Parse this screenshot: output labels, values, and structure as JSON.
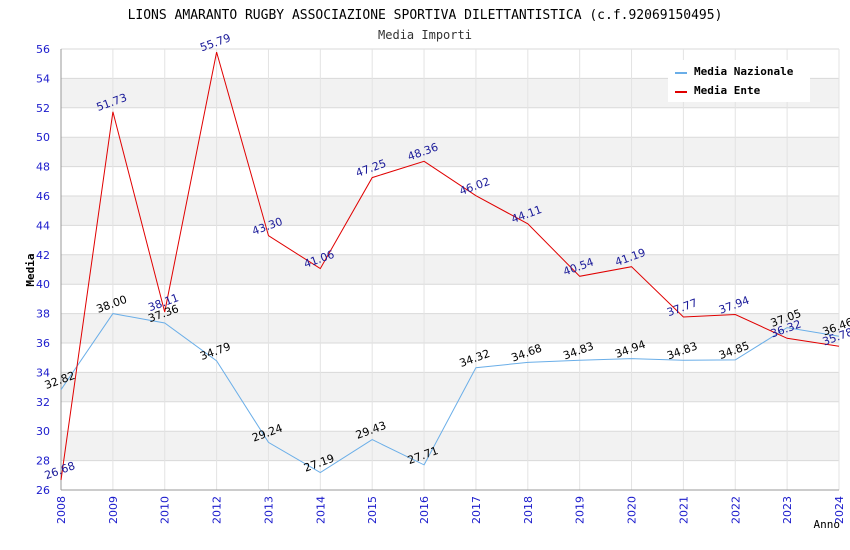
{
  "chart_data": {
    "type": "line",
    "title": "LIONS AMARANTO RUGBY ASSOCIAZIONE SPORTIVA DILETTANTISTICA (c.f.92069150495)",
    "subtitle": "Media Importi",
    "xlabel": "Anno",
    "ylabel": "Media",
    "ylim": [
      26,
      56
    ],
    "yticks": [
      26,
      28,
      30,
      32,
      34,
      36,
      38,
      40,
      42,
      44,
      46,
      48,
      50,
      52,
      54,
      56
    ],
    "categories": [
      "2008",
      "2009",
      "2010",
      "2012",
      "2013",
      "2014",
      "2015",
      "2016",
      "2017",
      "2018",
      "2019",
      "2020",
      "2021",
      "2022",
      "2023",
      "2024"
    ],
    "legend_position": "top-right",
    "series": [
      {
        "name": "Media Nazionale",
        "color": "#6aaee8",
        "values": [
          32.82,
          38.0,
          37.36,
          34.79,
          29.24,
          27.19,
          29.43,
          27.71,
          34.32,
          34.68,
          34.83,
          34.94,
          34.83,
          34.85,
          37.05,
          36.46
        ],
        "labels": [
          "32.82",
          "38.00",
          "37.36",
          "34.79",
          "29.24",
          "27.19",
          "29.43",
          "27.71",
          "34.32",
          "34.68",
          "34.83",
          "34.94",
          "34.83",
          "34.85",
          "37.05",
          "36.46"
        ]
      },
      {
        "name": "Media Ente",
        "color": "#e00000",
        "values": [
          26.68,
          51.73,
          38.11,
          55.79,
          43.3,
          41.06,
          47.25,
          48.36,
          46.02,
          44.11,
          40.54,
          41.19,
          37.77,
          37.94,
          36.32,
          35.78
        ],
        "labels": [
          "26.68",
          "51.73",
          "38.11",
          "55.79",
          "43.30",
          "41.06",
          "47.25",
          "48.36",
          "46.02",
          "44.11",
          "40.54",
          "41.19",
          "37.77",
          "37.94",
          "36.32",
          "35.78"
        ]
      }
    ]
  }
}
